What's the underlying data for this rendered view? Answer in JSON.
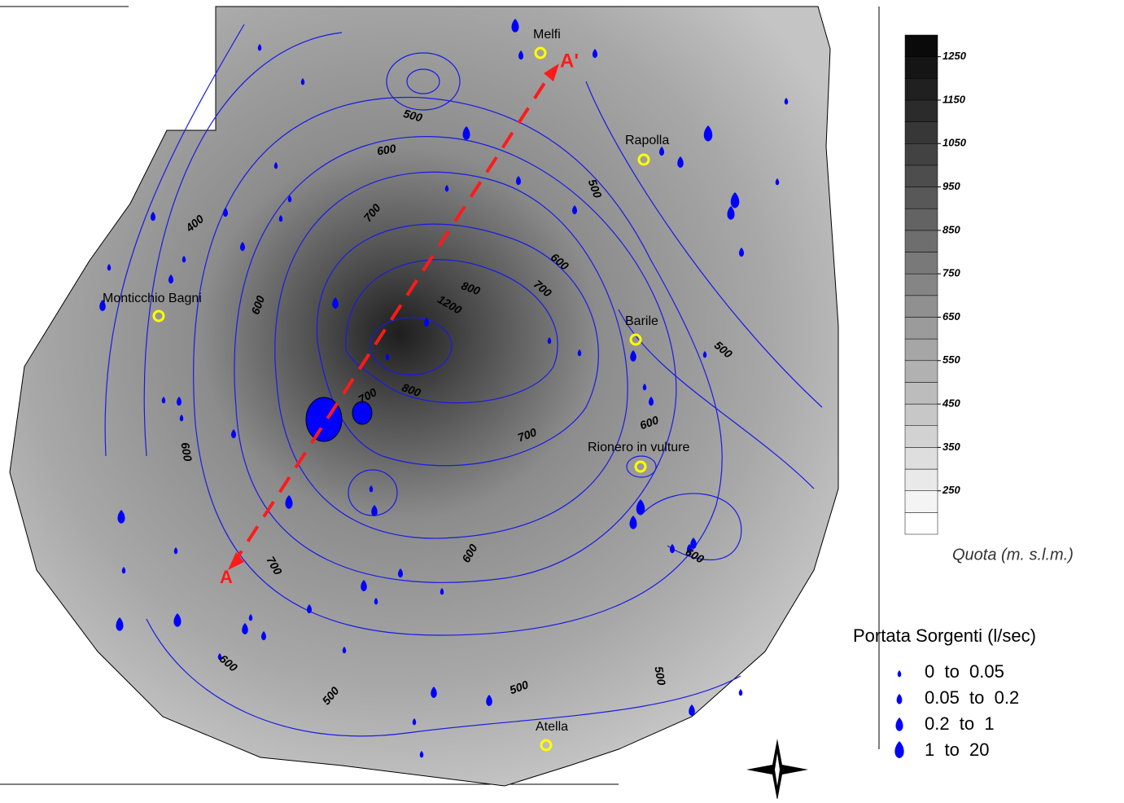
{
  "map": {
    "towns": [
      {
        "name": "Melfi"
      },
      {
        "name": "Rapolla"
      },
      {
        "name": "Monticchio Bagni"
      },
      {
        "name": "Barile"
      },
      {
        "name": "Rionero in vulture"
      },
      {
        "name": "Atella"
      }
    ],
    "section": {
      "start": "A",
      "end": "A'"
    },
    "contour_labels": [
      500,
      600,
      400,
      700,
      600,
      700,
      800,
      1200,
      600,
      500,
      800,
      700,
      600,
      700,
      600,
      600,
      700,
      600,
      600,
      500,
      500,
      500,
      500
    ],
    "colorbar": {
      "title": "Quota (m. s.l.m.)",
      "lim": [
        150,
        1300
      ],
      "ticks": [
        1250,
        1150,
        1050,
        950,
        850,
        750,
        650,
        550,
        450,
        350,
        250
      ]
    },
    "springs_legend": {
      "title": "Portata Sorgenti (l/sec)",
      "entries": [
        "0  to  0.05",
        "0.05  to  0.2",
        "0.2  to  1",
        "1  to  20"
      ]
    }
  }
}
